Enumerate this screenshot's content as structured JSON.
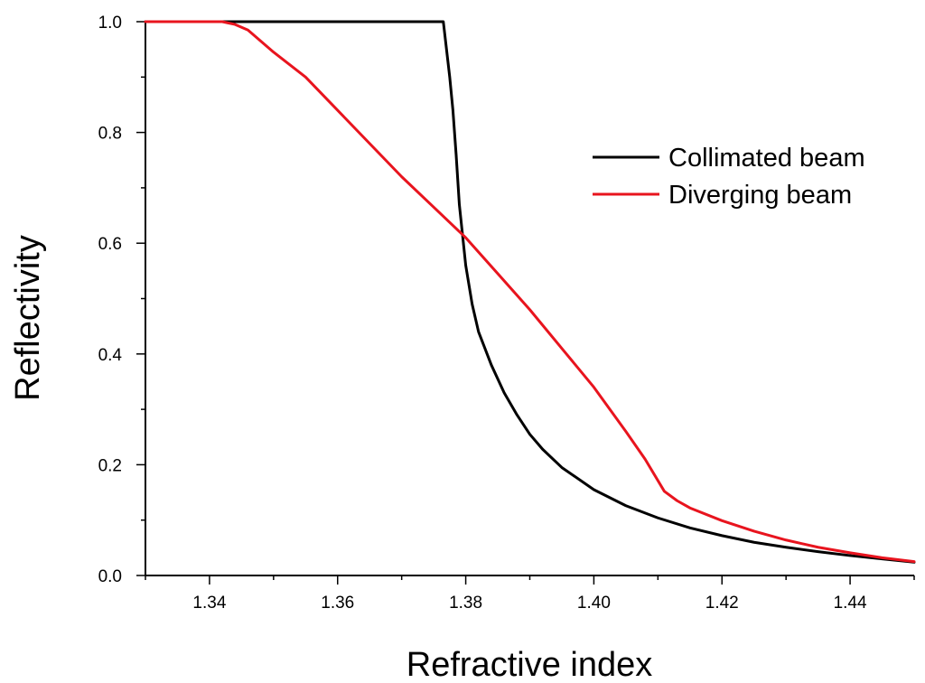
{
  "chart_data": {
    "type": "line",
    "xlabel": "Refractive index",
    "ylabel": "Reflectivity",
    "xlim": [
      1.33,
      1.45
    ],
    "ylim": [
      0.0,
      1.0
    ],
    "x_ticks": [
      1.34,
      1.36,
      1.38,
      1.4,
      1.42,
      1.44
    ],
    "x_tick_labels": [
      "1.34",
      "1.36",
      "1.38",
      "1.40",
      "1.42",
      "1.44"
    ],
    "y_ticks": [
      0.0,
      0.2,
      0.4,
      0.6,
      0.8,
      1.0
    ],
    "y_tick_labels": [
      "0.0",
      "0.2",
      "0.4",
      "0.6",
      "0.8",
      "1.0"
    ],
    "grid": false,
    "legend_position": "upper-right",
    "series": [
      {
        "name": "Collimated beam",
        "color": "#000000",
        "x": [
          1.33,
          1.3765,
          1.377,
          1.3775,
          1.378,
          1.3785,
          1.379,
          1.38,
          1.381,
          1.382,
          1.384,
          1.386,
          1.388,
          1.39,
          1.392,
          1.395,
          1.4,
          1.405,
          1.41,
          1.415,
          1.42,
          1.425,
          1.43,
          1.435,
          1.44,
          1.445,
          1.45
        ],
        "y": [
          1.0,
          1.0,
          0.95,
          0.9,
          0.84,
          0.76,
          0.67,
          0.56,
          0.49,
          0.44,
          0.38,
          0.33,
          0.29,
          0.255,
          0.228,
          0.195,
          0.155,
          0.126,
          0.104,
          0.086,
          0.072,
          0.06,
          0.051,
          0.043,
          0.036,
          0.03,
          0.024
        ]
      },
      {
        "name": "Diverging beam",
        "color": "#e8141e",
        "x": [
          1.33,
          1.342,
          1.344,
          1.346,
          1.35,
          1.355,
          1.36,
          1.365,
          1.37,
          1.375,
          1.38,
          1.385,
          1.39,
          1.395,
          1.4,
          1.405,
          1.408,
          1.411,
          1.413,
          1.415,
          1.42,
          1.425,
          1.43,
          1.435,
          1.44,
          1.445,
          1.45
        ],
        "y": [
          1.0,
          1.0,
          0.995,
          0.985,
          0.945,
          0.9,
          0.84,
          0.78,
          0.72,
          0.665,
          0.61,
          0.545,
          0.48,
          0.41,
          0.34,
          0.26,
          0.21,
          0.152,
          0.135,
          0.122,
          0.099,
          0.08,
          0.064,
          0.051,
          0.041,
          0.032,
          0.025
        ]
      }
    ]
  }
}
